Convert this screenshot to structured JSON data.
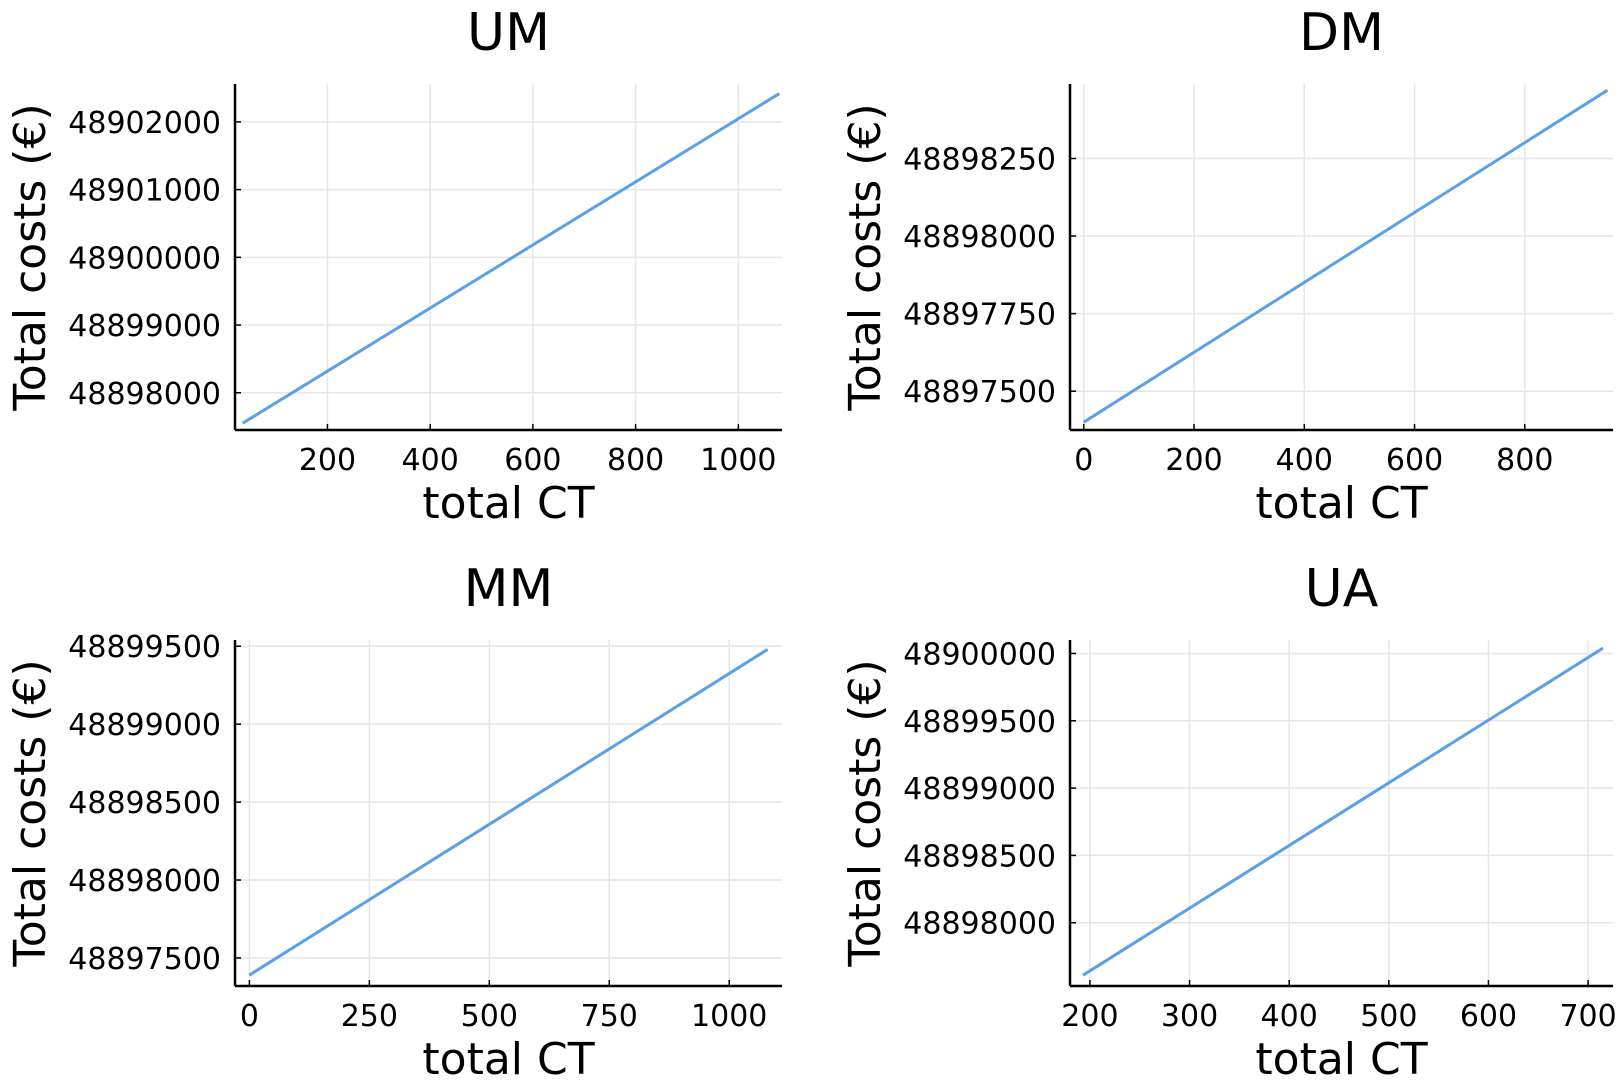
{
  "chart_data": [
    {
      "type": "line",
      "title": "UM",
      "xlabel": "total CT",
      "ylabel": "Total costs (€)",
      "xlim": [
        20,
        1085
      ],
      "ylim": [
        48897450,
        48902560
      ],
      "xticks": [
        200,
        400,
        600,
        800,
        1000
      ],
      "yticks": [
        48898000,
        48899000,
        48900000,
        48901000,
        48902000
      ],
      "grid": true,
      "series": [
        {
          "color": "#5b9ee9",
          "x": [
            35,
            1080
          ],
          "y": [
            48897550,
            48902420
          ]
        }
      ]
    },
    {
      "type": "line",
      "title": "DM",
      "xlabel": "total CT",
      "ylabel": "Total costs (€)",
      "xlim": [
        -25,
        960
      ],
      "ylim": [
        48897375,
        48898490
      ],
      "xticks": [
        0,
        200,
        400,
        600,
        800
      ],
      "yticks": [
        48897500,
        48897750,
        48898000,
        48898250
      ],
      "grid": true,
      "series": [
        {
          "color": "#5b9ee9",
          "x": [
            0,
            950
          ],
          "y": [
            48897400,
            48898470
          ]
        }
      ]
    },
    {
      "type": "line",
      "title": "MM",
      "xlabel": "total CT",
      "ylabel": "Total costs (€)",
      "xlim": [
        -30,
        1110
      ],
      "ylim": [
        48897320,
        48899540
      ],
      "xticks": [
        0,
        250,
        500,
        750,
        1000
      ],
      "yticks": [
        48897500,
        48898000,
        48898500,
        48899000,
        48899500
      ],
      "grid": true,
      "series": [
        {
          "color": "#5b9ee9",
          "x": [
            0,
            1080
          ],
          "y": [
            48897390,
            48899480
          ]
        }
      ]
    },
    {
      "type": "line",
      "title": "UA",
      "xlabel": "total CT",
      "ylabel": "Total costs (€)",
      "xlim": [
        180,
        725
      ],
      "ylim": [
        48897530,
        48900100
      ],
      "xticks": [
        200,
        300,
        400,
        500,
        600,
        700
      ],
      "yticks": [
        48898000,
        48898500,
        48899000,
        48899500,
        48900000
      ],
      "grid": true,
      "series": [
        {
          "color": "#5b9ee9",
          "x": [
            193,
            715
          ],
          "y": [
            48897610,
            48900040
          ]
        }
      ]
    }
  ]
}
